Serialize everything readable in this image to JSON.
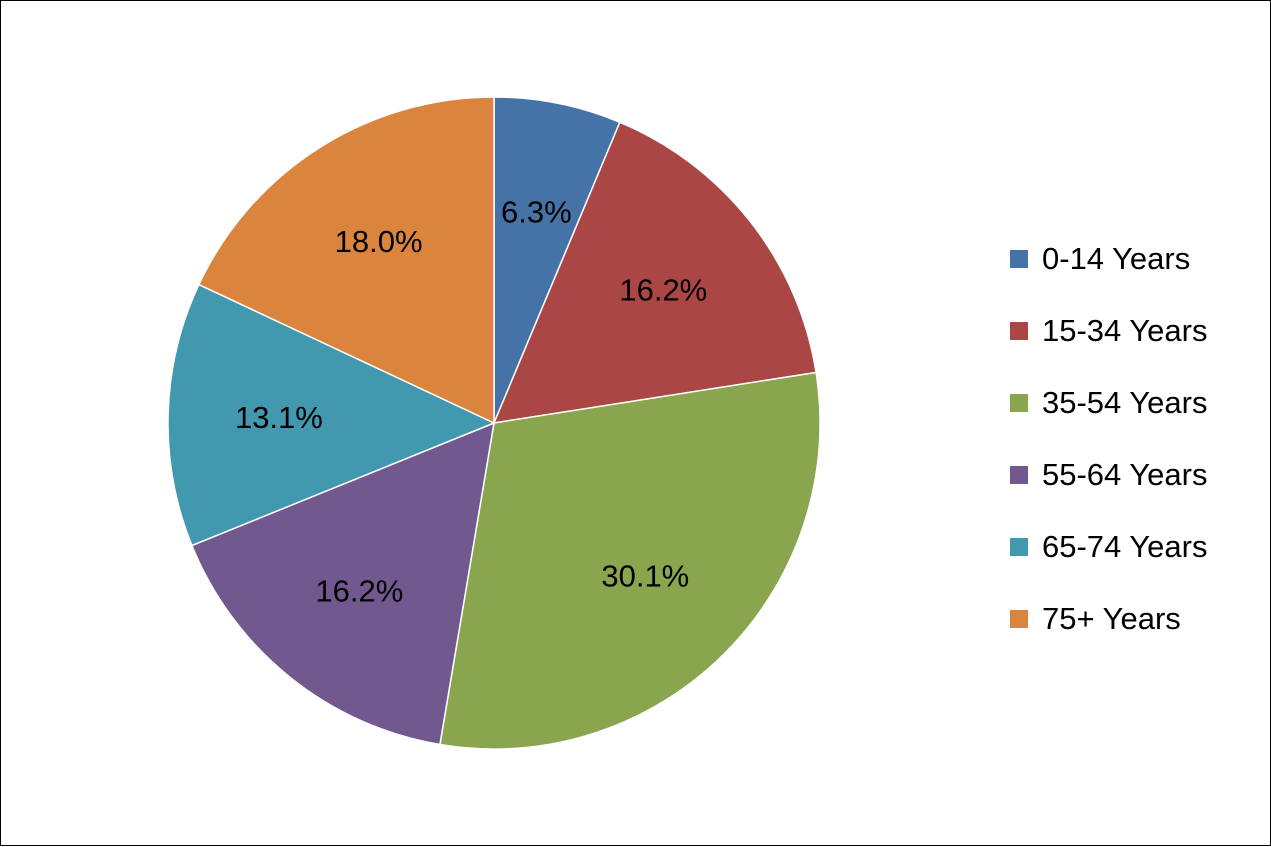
{
  "chart_data": {
    "type": "pie",
    "title": "",
    "legend_position": "right",
    "start_angle": "12 o'clock",
    "direction": "clockwise",
    "slices": [
      {
        "label": "0-14 Years",
        "value": 6.3,
        "display": "6.3%",
        "color": "#4572A7"
      },
      {
        "label": "15-34 Years",
        "value": 16.2,
        "display": "16.2%",
        "color": "#AA4643"
      },
      {
        "label": "35-54 Years",
        "value": 30.1,
        "display": "30.1%",
        "color": "#89A54E"
      },
      {
        "label": "55-64 Years",
        "value": 16.2,
        "display": "16.2%",
        "color": "#71588F"
      },
      {
        "label": "65-74 Years",
        "value": 13.1,
        "display": "13.1%",
        "color": "#4198AF"
      },
      {
        "label": "75+ Years",
        "value": 18.0,
        "display": "18.0%",
        "color": "#DB843D"
      }
    ]
  }
}
